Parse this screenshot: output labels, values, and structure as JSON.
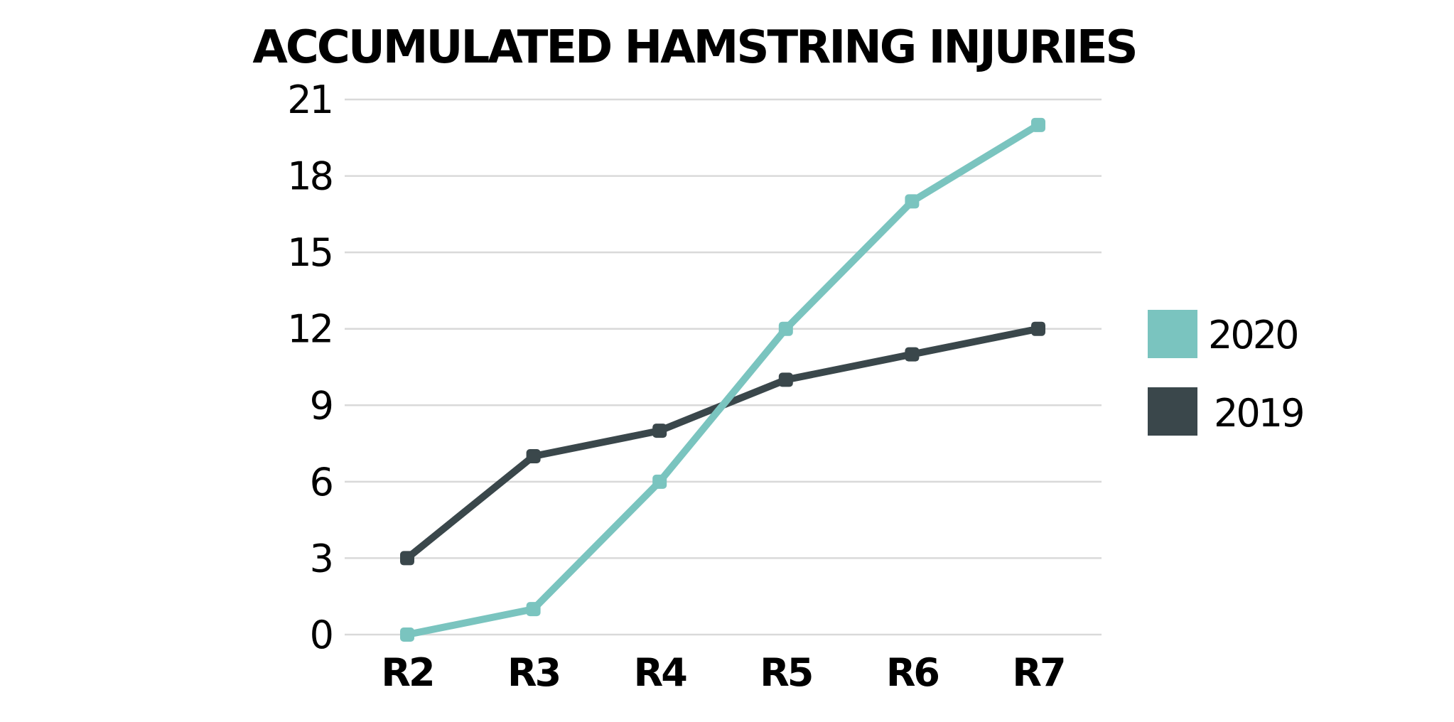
{
  "chart_data": {
    "type": "line",
    "title": "ACCUMULATED HAMSTRING INJURIES",
    "xlabel": "",
    "ylabel": "",
    "categories": [
      "R2",
      "R3",
      "R4",
      "R5",
      "R6",
      "R7"
    ],
    "yticks": [
      "0",
      "3",
      "6",
      "9",
      "12",
      "15",
      "18",
      "21"
    ],
    "ylim": [
      0,
      21
    ],
    "grid": true,
    "legend_position": "right",
    "series": [
      {
        "name": "2020",
        "color": "#7ac4bf",
        "values": [
          0,
          1,
          6,
          12,
          17,
          20
        ]
      },
      {
        "name": "2019",
        "color": "#3a474b",
        "values": [
          3,
          7,
          8,
          10,
          11,
          12
        ]
      }
    ]
  }
}
